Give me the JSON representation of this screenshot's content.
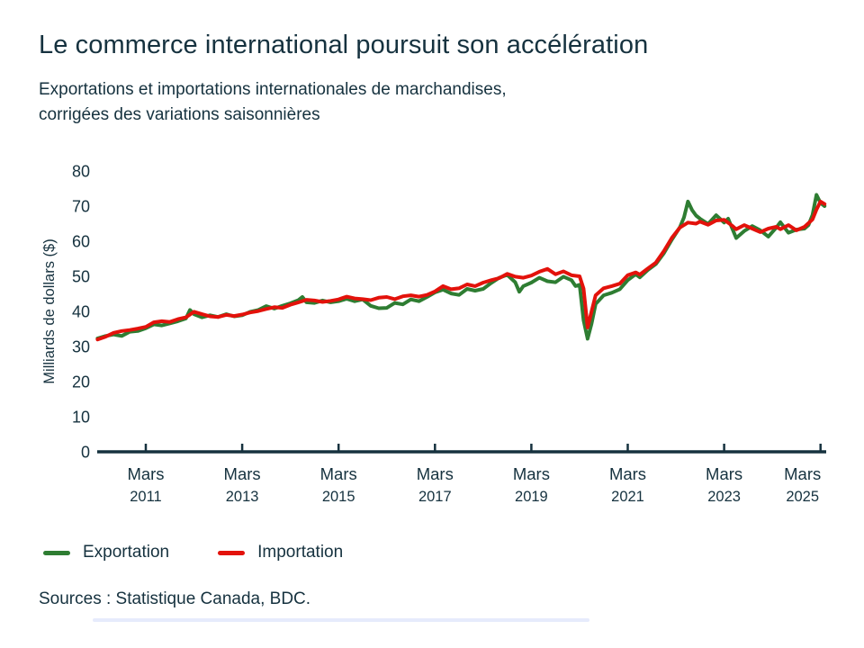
{
  "title": "Le commerce international poursuit son accélération",
  "subtitle_line1": "Exportations et importations internationales de marchandises,",
  "subtitle_line2": "corrigées des variations saisonnières",
  "source": "Sources : Statistique Canada, BDC.",
  "colors": {
    "export_green": "#2e7d32",
    "import_red": "#e3120b",
    "text_navy": "#16323f",
    "axis_navy": "#16323f",
    "accent_blue_bar": "#2f5bea"
  },
  "legend": [
    {
      "label": "Exportation"
    },
    {
      "label": "Importation"
    }
  ],
  "chart_data": {
    "type": "line",
    "title": "Exportations et importations internationales de marchandises, corrigées des variations saisonnières",
    "ylabel": "Milliards de dollars ($)",
    "ylim": [
      0,
      80
    ],
    "y_ticks": [
      80,
      70,
      60,
      50,
      40,
      30,
      20,
      10,
      0
    ],
    "grid": false,
    "legend_position": "bottom-left",
    "x_unit": "months since Mars 2010 (monthly series, Mars 2010 – Avril 2025)",
    "x_ticks": [
      {
        "month": 12,
        "line1": "Mars",
        "line2": "2011"
      },
      {
        "month": 36,
        "line1": "Mars",
        "line2": "2013"
      },
      {
        "month": 60,
        "line1": "Mars",
        "line2": "2015"
      },
      {
        "month": 84,
        "line1": "Mars",
        "line2": "2017"
      },
      {
        "month": 108,
        "line1": "Mars",
        "line2": "2019"
      },
      {
        "month": 132,
        "line1": "Mars",
        "line2": "2021"
      },
      {
        "month": 156,
        "line1": "Mars",
        "line2": "2023"
      },
      {
        "month": 180,
        "line1": "Mars",
        "line2": "2025"
      }
    ],
    "series": [
      {
        "name": "Exportation",
        "color": "#2e7d32",
        "points": [
          [
            0,
            32.3
          ],
          [
            2,
            33.0
          ],
          [
            4,
            33.4
          ],
          [
            6,
            33.0
          ],
          [
            8,
            34.2
          ],
          [
            10,
            34.4
          ],
          [
            12,
            35.2
          ],
          [
            14,
            36.3
          ],
          [
            16,
            36.0
          ],
          [
            18,
            36.6
          ],
          [
            20,
            37.2
          ],
          [
            22,
            38.0
          ],
          [
            23,
            40.4
          ],
          [
            24,
            39.2
          ],
          [
            26,
            38.3
          ],
          [
            28,
            38.9
          ],
          [
            30,
            38.4
          ],
          [
            32,
            39.2
          ],
          [
            34,
            38.6
          ],
          [
            36,
            38.9
          ],
          [
            38,
            39.9
          ],
          [
            40,
            40.4
          ],
          [
            42,
            41.5
          ],
          [
            44,
            40.8
          ],
          [
            46,
            41.6
          ],
          [
            48,
            42.3
          ],
          [
            50,
            43.2
          ],
          [
            51,
            44.1
          ],
          [
            52,
            42.6
          ],
          [
            54,
            42.4
          ],
          [
            56,
            43.1
          ],
          [
            58,
            42.6
          ],
          [
            60,
            42.9
          ],
          [
            62,
            43.6
          ],
          [
            64,
            42.9
          ],
          [
            66,
            43.4
          ],
          [
            68,
            41.6
          ],
          [
            70,
            40.9
          ],
          [
            72,
            41.0
          ],
          [
            74,
            42.4
          ],
          [
            76,
            42.0
          ],
          [
            78,
            43.4
          ],
          [
            80,
            42.9
          ],
          [
            82,
            44.1
          ],
          [
            84,
            45.4
          ],
          [
            86,
            46.2
          ],
          [
            88,
            45.1
          ],
          [
            90,
            44.7
          ],
          [
            92,
            46.4
          ],
          [
            94,
            45.9
          ],
          [
            96,
            46.4
          ],
          [
            98,
            48.1
          ],
          [
            100,
            49.6
          ],
          [
            102,
            50.4
          ],
          [
            104,
            48.3
          ],
          [
            105,
            45.6
          ],
          [
            106,
            47.2
          ],
          [
            108,
            48.2
          ],
          [
            110,
            49.6
          ],
          [
            112,
            48.6
          ],
          [
            114,
            48.3
          ],
          [
            116,
            49.9
          ],
          [
            118,
            48.9
          ],
          [
            119,
            47.2
          ],
          [
            120,
            47.6
          ],
          [
            121,
            37.5
          ],
          [
            122,
            32.2
          ],
          [
            123,
            36.5
          ],
          [
            124,
            42.1
          ],
          [
            126,
            44.6
          ],
          [
            128,
            45.3
          ],
          [
            130,
            46.3
          ],
          [
            132,
            48.9
          ],
          [
            134,
            50.6
          ],
          [
            135,
            49.7
          ],
          [
            137,
            51.8
          ],
          [
            139,
            53.5
          ],
          [
            141,
            56.6
          ],
          [
            143,
            60.5
          ],
          [
            145,
            64.0
          ],
          [
            146,
            66.8
          ],
          [
            147,
            71.3
          ],
          [
            148,
            68.9
          ],
          [
            149,
            67.3
          ],
          [
            150,
            66.4
          ],
          [
            152,
            64.9
          ],
          [
            154,
            67.4
          ],
          [
            156,
            65.3
          ],
          [
            157,
            66.4
          ],
          [
            159,
            60.9
          ],
          [
            161,
            62.9
          ],
          [
            163,
            64.3
          ],
          [
            165,
            63.1
          ],
          [
            167,
            61.3
          ],
          [
            169,
            63.9
          ],
          [
            170,
            65.4
          ],
          [
            172,
            62.4
          ],
          [
            174,
            63.3
          ],
          [
            176,
            63.6
          ],
          [
            177,
            64.6
          ],
          [
            178,
            67.5
          ],
          [
            179,
            73.2
          ],
          [
            180,
            70.9
          ],
          [
            181,
            70.0
          ]
        ]
      },
      {
        "name": "Importation",
        "color": "#e3120b",
        "points": [
          [
            0,
            32.0
          ],
          [
            2,
            32.8
          ],
          [
            4,
            33.9
          ],
          [
            6,
            34.4
          ],
          [
            8,
            34.7
          ],
          [
            10,
            35.1
          ],
          [
            12,
            35.6
          ],
          [
            14,
            36.9
          ],
          [
            16,
            37.2
          ],
          [
            18,
            37.0
          ],
          [
            20,
            37.8
          ],
          [
            22,
            38.3
          ],
          [
            24,
            39.9
          ],
          [
            26,
            39.2
          ],
          [
            28,
            38.6
          ],
          [
            30,
            38.4
          ],
          [
            32,
            39.0
          ],
          [
            34,
            38.7
          ],
          [
            36,
            39.1
          ],
          [
            38,
            39.7
          ],
          [
            40,
            40.1
          ],
          [
            42,
            40.7
          ],
          [
            44,
            41.2
          ],
          [
            46,
            41.0
          ],
          [
            48,
            41.9
          ],
          [
            50,
            42.6
          ],
          [
            52,
            43.3
          ],
          [
            54,
            43.1
          ],
          [
            56,
            42.7
          ],
          [
            58,
            43.0
          ],
          [
            60,
            43.4
          ],
          [
            62,
            44.2
          ],
          [
            64,
            43.7
          ],
          [
            66,
            43.5
          ],
          [
            68,
            43.2
          ],
          [
            70,
            43.9
          ],
          [
            72,
            44.1
          ],
          [
            74,
            43.5
          ],
          [
            76,
            44.3
          ],
          [
            78,
            44.6
          ],
          [
            80,
            44.2
          ],
          [
            82,
            44.7
          ],
          [
            84,
            45.7
          ],
          [
            86,
            47.2
          ],
          [
            88,
            46.3
          ],
          [
            90,
            46.6
          ],
          [
            92,
            47.7
          ],
          [
            94,
            47.2
          ],
          [
            96,
            48.2
          ],
          [
            98,
            48.9
          ],
          [
            100,
            49.5
          ],
          [
            102,
            50.7
          ],
          [
            104,
            49.9
          ],
          [
            106,
            49.6
          ],
          [
            108,
            50.2
          ],
          [
            110,
            51.3
          ],
          [
            112,
            52.1
          ],
          [
            114,
            50.6
          ],
          [
            116,
            51.4
          ],
          [
            118,
            50.3
          ],
          [
            120,
            50.0
          ],
          [
            121,
            46.5
          ],
          [
            122,
            35.4
          ],
          [
            123,
            40.0
          ],
          [
            124,
            44.6
          ],
          [
            126,
            46.6
          ],
          [
            128,
            47.2
          ],
          [
            130,
            47.9
          ],
          [
            132,
            50.3
          ],
          [
            134,
            51.1
          ],
          [
            135,
            50.5
          ],
          [
            137,
            52.2
          ],
          [
            139,
            53.9
          ],
          [
            141,
            57.2
          ],
          [
            143,
            61.0
          ],
          [
            145,
            63.9
          ],
          [
            147,
            65.3
          ],
          [
            149,
            65.0
          ],
          [
            150,
            65.6
          ],
          [
            152,
            64.7
          ],
          [
            154,
            65.9
          ],
          [
            156,
            66.1
          ],
          [
            158,
            64.4
          ],
          [
            159,
            63.4
          ],
          [
            161,
            64.6
          ],
          [
            163,
            63.6
          ],
          [
            165,
            62.6
          ],
          [
            167,
            63.6
          ],
          [
            169,
            64.1
          ],
          [
            170,
            63.4
          ],
          [
            172,
            64.6
          ],
          [
            174,
            63.1
          ],
          [
            176,
            64.1
          ],
          [
            178,
            66.2
          ],
          [
            179,
            69.0
          ],
          [
            180,
            71.3
          ],
          [
            181,
            70.6
          ]
        ]
      }
    ]
  }
}
